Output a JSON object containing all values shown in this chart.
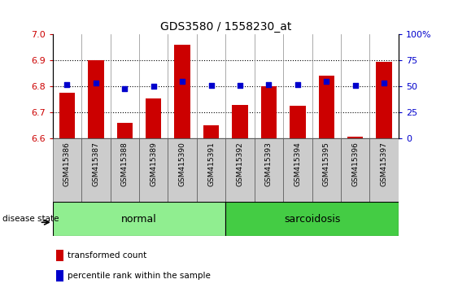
{
  "title": "GDS3580 / 1558230_at",
  "samples": [
    "GSM415386",
    "GSM415387",
    "GSM415388",
    "GSM415389",
    "GSM415390",
    "GSM415391",
    "GSM415392",
    "GSM415393",
    "GSM415394",
    "GSM415395",
    "GSM415396",
    "GSM415397"
  ],
  "transformed_count": [
    6.775,
    6.9,
    6.66,
    6.755,
    6.96,
    6.65,
    6.73,
    6.8,
    6.725,
    6.84,
    6.605,
    6.895
  ],
  "percentile_rank": [
    52,
    53,
    48,
    50,
    55,
    51,
    51,
    52,
    52,
    55,
    51,
    53
  ],
  "groups": [
    {
      "label": "normal",
      "start": 0,
      "end": 6,
      "color": "#90EE90"
    },
    {
      "label": "sarcoidosis",
      "start": 6,
      "end": 12,
      "color": "#44CC44"
    }
  ],
  "ylim": [
    6.6,
    7.0
  ],
  "yticks": [
    6.6,
    6.7,
    6.8,
    6.9,
    7.0
  ],
  "y2lim": [
    0,
    100
  ],
  "y2ticks": [
    0,
    25,
    50,
    75,
    100
  ],
  "y2ticklabels": [
    "0",
    "25",
    "50",
    "75",
    "100%"
  ],
  "bar_color": "#CC0000",
  "dot_color": "#0000CC",
  "bar_width": 0.55,
  "bg_color": "#CCCCCC",
  "legend_red": "transformed count",
  "legend_blue": "percentile rank within the sample",
  "disease_label": "disease state"
}
